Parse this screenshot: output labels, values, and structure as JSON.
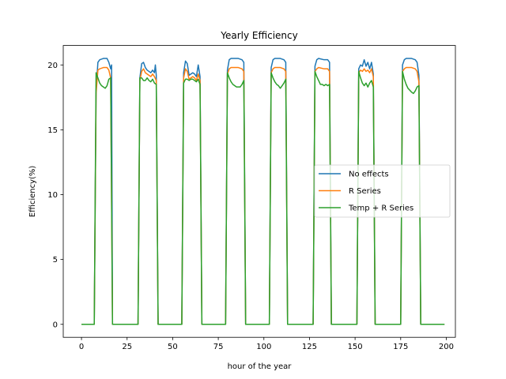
{
  "chart_data": {
    "type": "line",
    "title": "Yearly Efficiency",
    "xlabel": "hour of the year",
    "ylabel": "Efficiency(%)",
    "xlim": [
      -10,
      205
    ],
    "ylim": [
      -1,
      21.5
    ],
    "xticks": [
      0,
      25,
      50,
      75,
      100,
      125,
      150,
      175,
      200
    ],
    "yticks": [
      0,
      5,
      10,
      15,
      20
    ],
    "grid": false,
    "legend": "center-right",
    "series": [
      {
        "name": "No effects",
        "color": "#1f77b4",
        "points": [
          [
            0,
            0
          ],
          [
            7,
            0
          ],
          [
            8,
            18
          ],
          [
            9,
            20.2
          ],
          [
            10,
            20.4
          ],
          [
            12,
            20.5
          ],
          [
            14,
            20.5
          ],
          [
            15,
            20.2
          ],
          [
            16,
            19.7
          ],
          [
            16.5,
            20.0
          ],
          [
            17,
            0
          ],
          [
            31,
            0
          ],
          [
            32,
            19.0
          ],
          [
            33,
            20.1
          ],
          [
            34,
            20.2
          ],
          [
            35,
            19.8
          ],
          [
            36,
            19.6
          ],
          [
            37,
            19.5
          ],
          [
            38,
            19.4
          ],
          [
            39,
            19.6
          ],
          [
            40,
            19.4
          ],
          [
            40.5,
            20.0
          ],
          [
            41,
            19.2
          ],
          [
            42,
            0
          ],
          [
            55,
            0
          ],
          [
            56,
            19.4
          ],
          [
            57,
            20.3
          ],
          [
            58,
            20.1
          ],
          [
            59,
            19.2
          ],
          [
            60,
            19.3
          ],
          [
            61,
            19.4
          ],
          [
            62,
            19.3
          ],
          [
            63,
            19.1
          ],
          [
            64,
            20.0
          ],
          [
            65,
            19.1
          ],
          [
            66,
            0
          ],
          [
            79,
            0
          ],
          [
            80,
            19.6
          ],
          [
            81,
            20.4
          ],
          [
            82,
            20.5
          ],
          [
            86,
            20.5
          ],
          [
            88,
            20.4
          ],
          [
            89,
            20.2
          ],
          [
            90,
            0
          ],
          [
            103,
            0
          ],
          [
            104,
            19.8
          ],
          [
            105,
            20.4
          ],
          [
            106,
            20.5
          ],
          [
            109,
            20.5
          ],
          [
            111,
            20.4
          ],
          [
            112,
            20.2
          ],
          [
            113,
            0
          ],
          [
            127,
            0
          ],
          [
            128,
            19.9
          ],
          [
            129,
            20.4
          ],
          [
            130,
            20.5
          ],
          [
            133,
            20.4
          ],
          [
            135,
            20.4
          ],
          [
            136,
            20.2
          ],
          [
            137,
            0
          ],
          [
            151,
            0
          ],
          [
            152,
            19.7
          ],
          [
            153,
            20.0
          ],
          [
            154,
            19.9
          ],
          [
            155,
            20.4
          ],
          [
            156,
            19.9
          ],
          [
            157,
            20.2
          ],
          [
            158,
            19.7
          ],
          [
            159,
            20.2
          ],
          [
            160,
            19.3
          ],
          [
            161,
            0
          ],
          [
            175,
            0
          ],
          [
            176,
            20.0
          ],
          [
            177,
            20.4
          ],
          [
            178,
            20.5
          ],
          [
            181,
            20.5
          ],
          [
            183,
            20.4
          ],
          [
            184,
            20.2
          ],
          [
            185,
            19.2
          ],
          [
            186,
            0
          ],
          [
            199,
            0
          ]
        ]
      },
      {
        "name": "R Series",
        "color": "#ff7f0e",
        "points": [
          [
            0,
            0
          ],
          [
            7,
            0
          ],
          [
            8,
            17.8
          ],
          [
            9,
            19.6
          ],
          [
            10,
            19.7
          ],
          [
            12,
            19.8
          ],
          [
            14,
            19.8
          ],
          [
            15,
            19.6
          ],
          [
            16,
            19.0
          ],
          [
            17,
            0
          ],
          [
            31,
            0
          ],
          [
            32,
            18.8
          ],
          [
            33,
            19.5
          ],
          [
            34,
            19.7
          ],
          [
            35,
            19.4
          ],
          [
            36,
            19.3
          ],
          [
            37,
            19.2
          ],
          [
            38,
            19.1
          ],
          [
            39,
            19.3
          ],
          [
            40,
            19.1
          ],
          [
            41,
            18.8
          ],
          [
            42,
            0
          ],
          [
            55,
            0
          ],
          [
            56,
            19.0
          ],
          [
            57,
            19.7
          ],
          [
            58,
            19.5
          ],
          [
            59,
            18.9
          ],
          [
            60,
            19.0
          ],
          [
            61,
            19.1
          ],
          [
            62,
            19.0
          ],
          [
            63,
            18.8
          ],
          [
            64,
            19.3
          ],
          [
            65,
            18.8
          ],
          [
            66,
            0
          ],
          [
            79,
            0
          ],
          [
            80,
            19.3
          ],
          [
            81,
            19.7
          ],
          [
            82,
            19.8
          ],
          [
            86,
            19.8
          ],
          [
            88,
            19.7
          ],
          [
            89,
            19.5
          ],
          [
            90,
            0
          ],
          [
            103,
            0
          ],
          [
            104,
            19.4
          ],
          [
            105,
            19.7
          ],
          [
            106,
            19.8
          ],
          [
            109,
            19.8
          ],
          [
            111,
            19.7
          ],
          [
            112,
            19.5
          ],
          [
            113,
            0
          ],
          [
            127,
            0
          ],
          [
            128,
            19.5
          ],
          [
            129,
            19.7
          ],
          [
            130,
            19.8
          ],
          [
            133,
            19.7
          ],
          [
            135,
            19.7
          ],
          [
            136,
            19.5
          ],
          [
            137,
            0
          ],
          [
            151,
            0
          ],
          [
            152,
            19.4
          ],
          [
            153,
            19.6
          ],
          [
            154,
            19.5
          ],
          [
            155,
            19.7
          ],
          [
            156,
            19.5
          ],
          [
            157,
            19.6
          ],
          [
            158,
            19.4
          ],
          [
            159,
            19.7
          ],
          [
            160,
            19.1
          ],
          [
            161,
            0
          ],
          [
            175,
            0
          ],
          [
            176,
            19.5
          ],
          [
            177,
            19.7
          ],
          [
            178,
            19.8
          ],
          [
            181,
            19.8
          ],
          [
            183,
            19.7
          ],
          [
            184,
            19.5
          ],
          [
            185,
            18.7
          ],
          [
            186,
            0
          ],
          [
            199,
            0
          ]
        ]
      },
      {
        "name": "Temp +  R Series",
        "color": "#2ca02c",
        "points": [
          [
            0,
            0
          ],
          [
            7,
            0
          ],
          [
            8,
            19.4
          ],
          [
            9,
            19.0
          ],
          [
            10,
            18.6
          ],
          [
            11,
            18.4
          ],
          [
            12,
            18.3
          ],
          [
            13,
            18.2
          ],
          [
            14,
            18.4
          ],
          [
            15,
            18.9
          ],
          [
            16,
            19.0
          ],
          [
            17,
            0
          ],
          [
            31,
            0
          ],
          [
            32,
            19.0
          ],
          [
            33,
            19.0
          ],
          [
            34,
            18.8
          ],
          [
            35,
            18.8
          ],
          [
            36,
            19.0
          ],
          [
            37,
            18.8
          ],
          [
            38,
            18.7
          ],
          [
            39,
            18.9
          ],
          [
            40,
            18.6
          ],
          [
            41,
            18.5
          ],
          [
            42,
            0
          ],
          [
            55,
            0
          ],
          [
            56,
            18.6
          ],
          [
            57,
            18.9
          ],
          [
            58,
            18.9
          ],
          [
            59,
            18.8
          ],
          [
            60,
            18.9
          ],
          [
            61,
            18.9
          ],
          [
            62,
            18.8
          ],
          [
            63,
            18.7
          ],
          [
            64,
            18.9
          ],
          [
            65,
            18.5
          ],
          [
            66,
            0
          ],
          [
            79,
            0
          ],
          [
            80,
            19.4
          ],
          [
            81,
            19.0
          ],
          [
            82,
            18.7
          ],
          [
            83,
            18.5
          ],
          [
            85,
            18.3
          ],
          [
            87,
            18.3
          ],
          [
            88,
            18.5
          ],
          [
            89,
            18.8
          ],
          [
            90,
            0
          ],
          [
            103,
            0
          ],
          [
            104,
            19.4
          ],
          [
            105,
            19.0
          ],
          [
            106,
            18.7
          ],
          [
            107,
            18.5
          ],
          [
            108,
            18.4
          ],
          [
            109,
            18.2
          ],
          [
            110,
            18.4
          ],
          [
            111,
            18.6
          ],
          [
            112,
            18.9
          ],
          [
            113,
            0
          ],
          [
            127,
            0
          ],
          [
            128,
            19.5
          ],
          [
            129,
            19.1
          ],
          [
            130,
            18.8
          ],
          [
            131,
            18.5
          ],
          [
            132,
            18.5
          ],
          [
            133,
            18.4
          ],
          [
            134,
            18.5
          ],
          [
            135,
            18.4
          ],
          [
            136,
            18.5
          ],
          [
            137,
            0
          ],
          [
            151,
            0
          ],
          [
            152,
            19.5
          ],
          [
            153,
            19.0
          ],
          [
            154,
            18.6
          ],
          [
            155,
            18.4
          ],
          [
            156,
            18.6
          ],
          [
            157,
            18.3
          ],
          [
            158,
            18.6
          ],
          [
            159,
            18.8
          ],
          [
            160,
            18.3
          ],
          [
            161,
            0
          ],
          [
            175,
            0
          ],
          [
            176,
            19.5
          ],
          [
            177,
            18.9
          ],
          [
            178,
            18.5
          ],
          [
            179,
            18.2
          ],
          [
            181,
            17.9
          ],
          [
            182,
            17.8
          ],
          [
            183,
            18.0
          ],
          [
            184,
            18.3
          ],
          [
            185,
            18.4
          ],
          [
            186,
            0
          ],
          [
            199,
            0
          ]
        ]
      }
    ]
  }
}
